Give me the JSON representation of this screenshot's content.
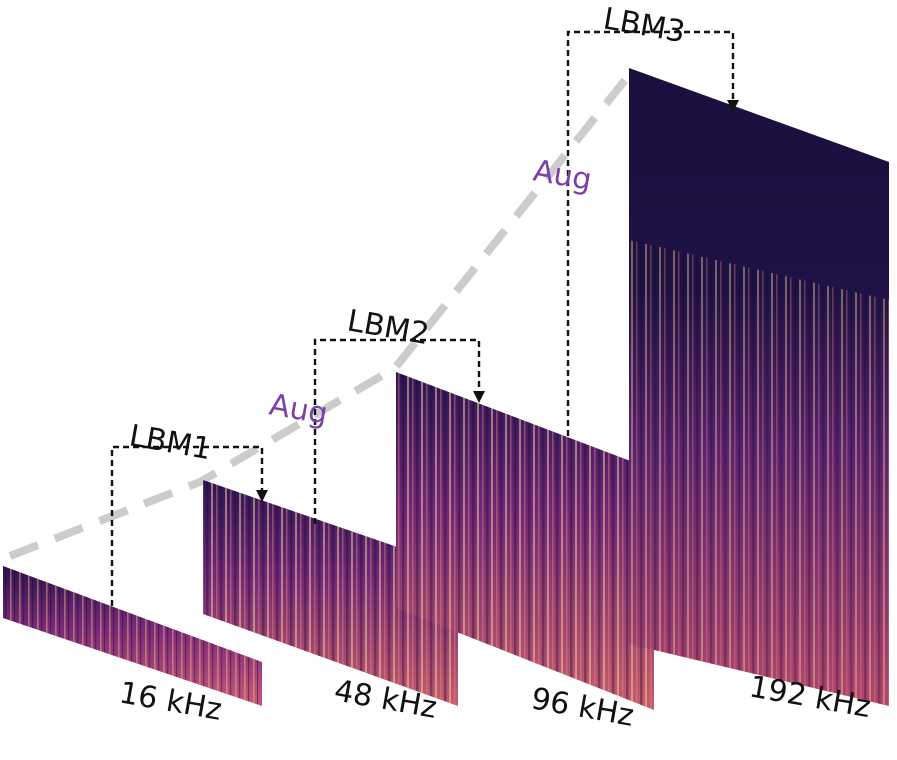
{
  "figure": {
    "panels": [
      {
        "id": "p16",
        "sample_rate_label": "16 kHz"
      },
      {
        "id": "p48",
        "sample_rate_label": "48 kHz"
      },
      {
        "id": "p96",
        "sample_rate_label": "96 kHz"
      },
      {
        "id": "p192",
        "sample_rate_label": "192 kHz"
      }
    ],
    "models": [
      {
        "id": "lbm1",
        "label": "LBM1"
      },
      {
        "id": "lbm2",
        "label": "LBM2"
      },
      {
        "id": "lbm3",
        "label": "LBM3"
      }
    ],
    "augment_label": "Aug",
    "colors": {
      "spectrogram_low": "#1a0f3d",
      "spectrogram_mid": "#7a2a7a",
      "spectrogram_high": "#f7c58a",
      "guide_line": "#cccccc",
      "augment_text": "#7b3fa8",
      "bracket": "#111111"
    }
  }
}
